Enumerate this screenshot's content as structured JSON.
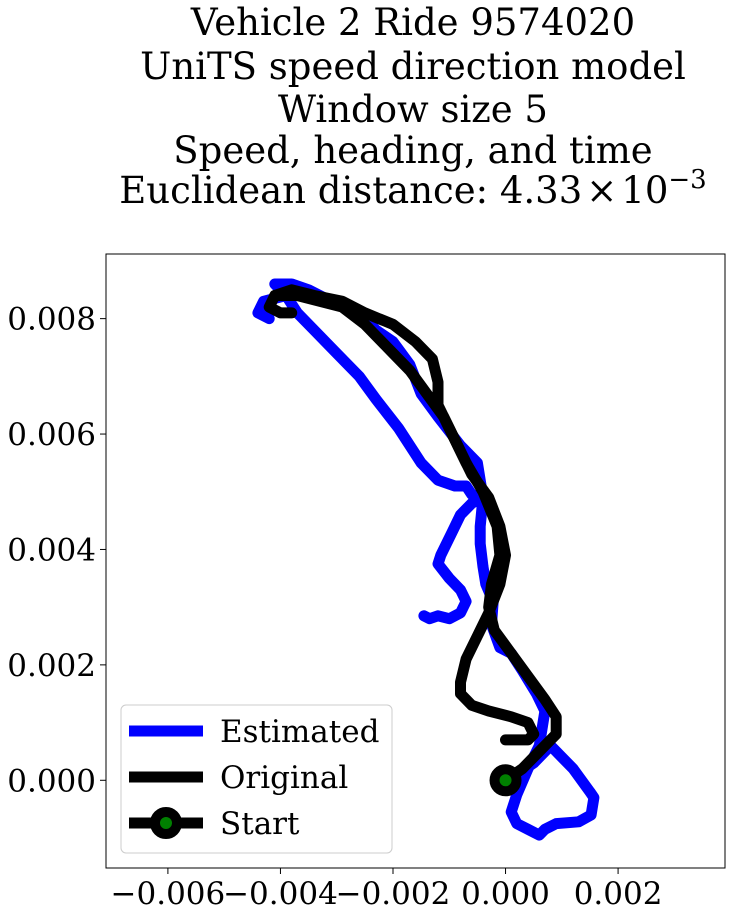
{
  "chart_data": {
    "type": "line",
    "title_lines": [
      "Vehicle 2 Ride 9574020",
      "UniTS speed direction model",
      "Window size 5",
      "Speed, heading, and time",
      "Euclidean distance: 4.33×10⁻³"
    ],
    "title_math": {
      "prefix": "Euclidean distance: ",
      "mantissa": "4.33",
      "times": "×",
      "base": "10",
      "exponent": "−3"
    },
    "xlim": [
      -0.0071,
      0.0039
    ],
    "ylim": [
      -0.00152,
      0.00912
    ],
    "x_ticks": [
      -0.006,
      -0.004,
      -0.002,
      0.0,
      0.002
    ],
    "x_tick_labels": [
      "−0.006",
      "−0.004",
      "−0.002",
      "0.000",
      "0.002"
    ],
    "y_ticks": [
      0.0,
      0.002,
      0.004,
      0.006,
      0.008
    ],
    "y_tick_labels": [
      "0.000",
      "0.002",
      "0.004",
      "0.006",
      "0.008"
    ],
    "grid": false,
    "legend_position": "lower left",
    "legend": [
      {
        "label": "Estimated",
        "color": "#0000ff",
        "marker": "none"
      },
      {
        "label": "Original",
        "color": "#000000",
        "marker": "none"
      },
      {
        "label": "Start",
        "color": "#000000",
        "marker": "circle",
        "marker_face": "#008000"
      }
    ],
    "series": [
      {
        "name": "Estimated",
        "color": "#0000ff",
        "points": [
          [
            0.0,
            0.0
          ],
          [
            0.0002,
            0.0001
          ],
          [
            0.0005,
            0.0003
          ],
          [
            0.0008,
            0.0006
          ],
          [
            0.0012,
            0.0002
          ],
          [
            0.0015,
            -0.0002
          ],
          [
            0.00157,
            -0.0003
          ],
          [
            0.00152,
            -0.0006
          ],
          [
            0.0013,
            -0.00072
          ],
          [
            0.0009,
            -0.00075
          ],
          [
            0.0007,
            -0.00085
          ],
          [
            0.0006,
            -0.00095
          ],
          [
            0.0004,
            -0.00085
          ],
          [
            0.0002,
            -0.00075
          ],
          [
            0.0001,
            -0.00055
          ],
          [
            0.0002,
            -0.00025
          ],
          [
            0.0004,
            0.0002
          ],
          [
            0.0006,
            0.0006
          ],
          [
            0.0007,
            0.0012
          ],
          [
            0.00055,
            0.0015
          ],
          [
            0.0003,
            0.0019
          ],
          [
            0.0001,
            0.0022
          ],
          [
            -0.0001,
            0.0023
          ],
          [
            -0.00025,
            0.0027
          ],
          [
            -0.00022,
            0.0031
          ],
          [
            -0.00035,
            0.0034
          ],
          [
            -0.0004,
            0.0037
          ],
          [
            -0.00045,
            0.0041
          ],
          [
            -0.00045,
            0.0044
          ],
          [
            -0.0004,
            0.0049
          ],
          [
            -0.0006,
            0.0048
          ],
          [
            -0.0008,
            0.0046
          ],
          [
            -0.00095,
            0.0043
          ],
          [
            -0.00115,
            0.0039
          ],
          [
            -0.0012,
            0.00375
          ],
          [
            -0.001,
            0.0035
          ],
          [
            -0.0008,
            0.0033
          ],
          [
            -0.0007,
            0.0031
          ],
          [
            -0.0008,
            0.0029
          ],
          [
            -0.001,
            0.0028
          ],
          [
            -0.0012,
            0.00285
          ],
          [
            -0.00135,
            0.0028
          ],
          [
            -0.00145,
            0.00285
          ]
        ]
      },
      {
        "name": "Estimated-return",
        "color": "#0000ff",
        "points": [
          [
            -0.0004,
            0.0049
          ],
          [
            -0.0006,
            0.00495
          ],
          [
            -0.0007,
            0.0051
          ],
          [
            -0.0009,
            0.0051
          ],
          [
            -0.0012,
            0.0052
          ],
          [
            -0.0015,
            0.0055
          ],
          [
            -0.0019,
            0.0061
          ],
          [
            -0.0023,
            0.0066
          ],
          [
            -0.0026,
            0.007
          ],
          [
            -0.003,
            0.0074
          ],
          [
            -0.0034,
            0.0078
          ],
          [
            -0.0037,
            0.0081
          ],
          [
            -0.0039,
            0.0084
          ],
          [
            -0.0041,
            0.0086
          ],
          [
            -0.0038,
            0.0086
          ],
          [
            -0.0035,
            0.0085
          ],
          [
            -0.0031,
            0.0083
          ],
          [
            -0.0026,
            0.0081
          ],
          [
            -0.0023,
            0.0078
          ],
          [
            -0.002,
            0.0076
          ],
          [
            -0.0017,
            0.0072
          ],
          [
            -0.0015,
            0.0067
          ],
          [
            -0.0012,
            0.0063
          ],
          [
            -0.0008,
            0.0058
          ],
          [
            -0.0005,
            0.0055
          ],
          [
            -0.0004,
            0.0049
          ]
        ]
      },
      {
        "name": "Estimated-tail",
        "color": "#0000ff",
        "points": [
          [
            -0.0039,
            0.0084
          ],
          [
            -0.0043,
            0.0083
          ],
          [
            -0.0044,
            0.0081
          ],
          [
            -0.0042,
            0.008
          ]
        ]
      },
      {
        "name": "Original",
        "color": "#000000",
        "points": [
          [
            0.0,
            0.0
          ],
          [
            0.0003,
            0.0002
          ],
          [
            0.0006,
            0.0005
          ],
          [
            0.0009,
            0.0008
          ],
          [
            0.0009,
            0.0011
          ],
          [
            0.0007,
            0.0014
          ],
          [
            0.0004,
            0.0018
          ],
          [
            0.0001,
            0.0022
          ],
          [
            -0.0002,
            0.0026
          ],
          [
            -0.0003,
            0.003
          ],
          [
            -0.00025,
            0.0034
          ],
          [
            -0.0001,
            0.0039
          ],
          [
            -0.00015,
            0.0044
          ],
          [
            -0.0004,
            0.005
          ],
          [
            -0.0007,
            0.0055
          ],
          [
            -0.0009,
            0.0059
          ],
          [
            -0.0011,
            0.0063
          ],
          [
            -0.0014,
            0.0067
          ],
          [
            -0.0017,
            0.0071
          ],
          [
            -0.0021,
            0.0075
          ],
          [
            -0.0025,
            0.0079
          ],
          [
            -0.0029,
            0.0082
          ],
          [
            -0.0033,
            0.0083
          ],
          [
            -0.0037,
            0.0084
          ],
          [
            -0.0041,
            0.0084
          ],
          [
            -0.0042,
            0.0082
          ],
          [
            -0.004,
            0.0081
          ],
          [
            -0.0038,
            0.0081
          ]
        ]
      },
      {
        "name": "Original-loop",
        "color": "#000000",
        "points": [
          [
            -0.0041,
            0.0084
          ],
          [
            -0.0038,
            0.0085
          ],
          [
            -0.0034,
            0.0084
          ],
          [
            -0.0029,
            0.0083
          ],
          [
            -0.0025,
            0.0081
          ],
          [
            -0.002,
            0.0079
          ],
          [
            -0.0016,
            0.0076
          ],
          [
            -0.0013,
            0.0073
          ],
          [
            -0.0012,
            0.0069
          ],
          [
            -0.0012,
            0.0065
          ],
          [
            -0.001,
            0.0061
          ],
          [
            -0.0008,
            0.0057
          ],
          [
            -0.0006,
            0.0053
          ],
          [
            -0.0003,
            0.0049
          ],
          [
            -0.0001,
            0.0044
          ],
          [
            0.0,
            0.0039
          ],
          [
            -0.0001,
            0.0034
          ],
          [
            -0.0003,
            0.0029
          ],
          [
            -0.0005,
            0.0025
          ],
          [
            -0.0007,
            0.0021
          ],
          [
            -0.0008,
            0.0017
          ],
          [
            -0.0008,
            0.0015
          ],
          [
            -0.0006,
            0.0013
          ],
          [
            -0.0003,
            0.0012
          ],
          [
            0.0001,
            0.0011
          ],
          [
            0.0004,
            0.001
          ],
          [
            0.0005,
            0.0008
          ],
          [
            0.0004,
            0.0007
          ],
          [
            0.0002,
            0.0007
          ],
          [
            0.0,
            0.0007
          ]
        ]
      }
    ],
    "start_point": [
      0.0,
      0.0
    ]
  }
}
